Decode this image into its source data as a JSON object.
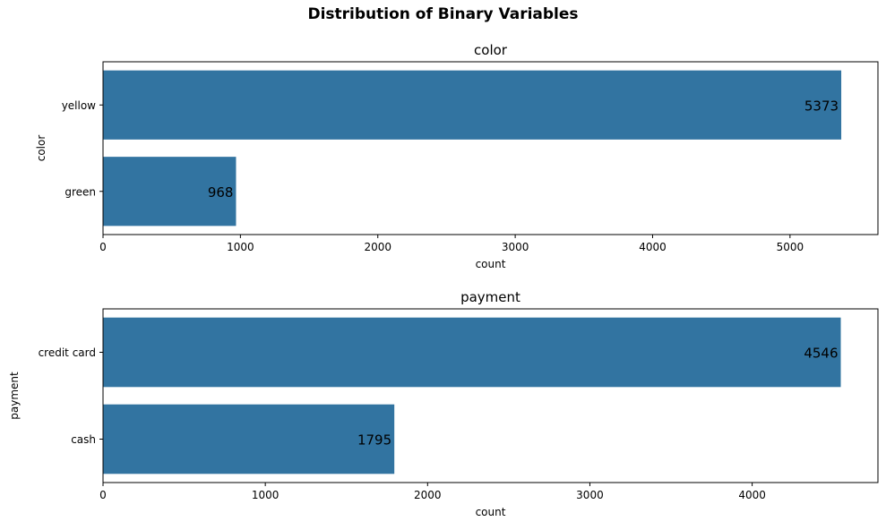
{
  "figure": {
    "title": "Distribution of Binary Variables"
  },
  "colors": {
    "bar": "#3274a1",
    "axis": "#000000",
    "background": "#ffffff"
  },
  "chart_data": [
    {
      "type": "bar",
      "orientation": "horizontal",
      "title": "color",
      "xlabel": "count",
      "ylabel": "color",
      "categories": [
        "yellow",
        "green"
      ],
      "values": [
        5373,
        968
      ],
      "data_labels": [
        "5373",
        "968"
      ],
      "xlim": [
        0,
        5640
      ],
      "xticks": [
        0,
        1000,
        2000,
        3000,
        4000,
        5000
      ],
      "xtick_labels": [
        "0",
        "1000",
        "2000",
        "3000",
        "4000",
        "5000"
      ],
      "grid": false,
      "legend": "none"
    },
    {
      "type": "bar",
      "orientation": "horizontal",
      "title": "payment",
      "xlabel": "count",
      "ylabel": "payment",
      "categories": [
        "credit card",
        "cash"
      ],
      "values": [
        4546,
        1795
      ],
      "data_labels": [
        "4546",
        "1795"
      ],
      "xlim": [
        0,
        4775
      ],
      "xticks": [
        0,
        1000,
        2000,
        3000,
        4000
      ],
      "xtick_labels": [
        "0",
        "1000",
        "2000",
        "3000",
        "4000"
      ],
      "grid": false,
      "legend": "none"
    }
  ]
}
